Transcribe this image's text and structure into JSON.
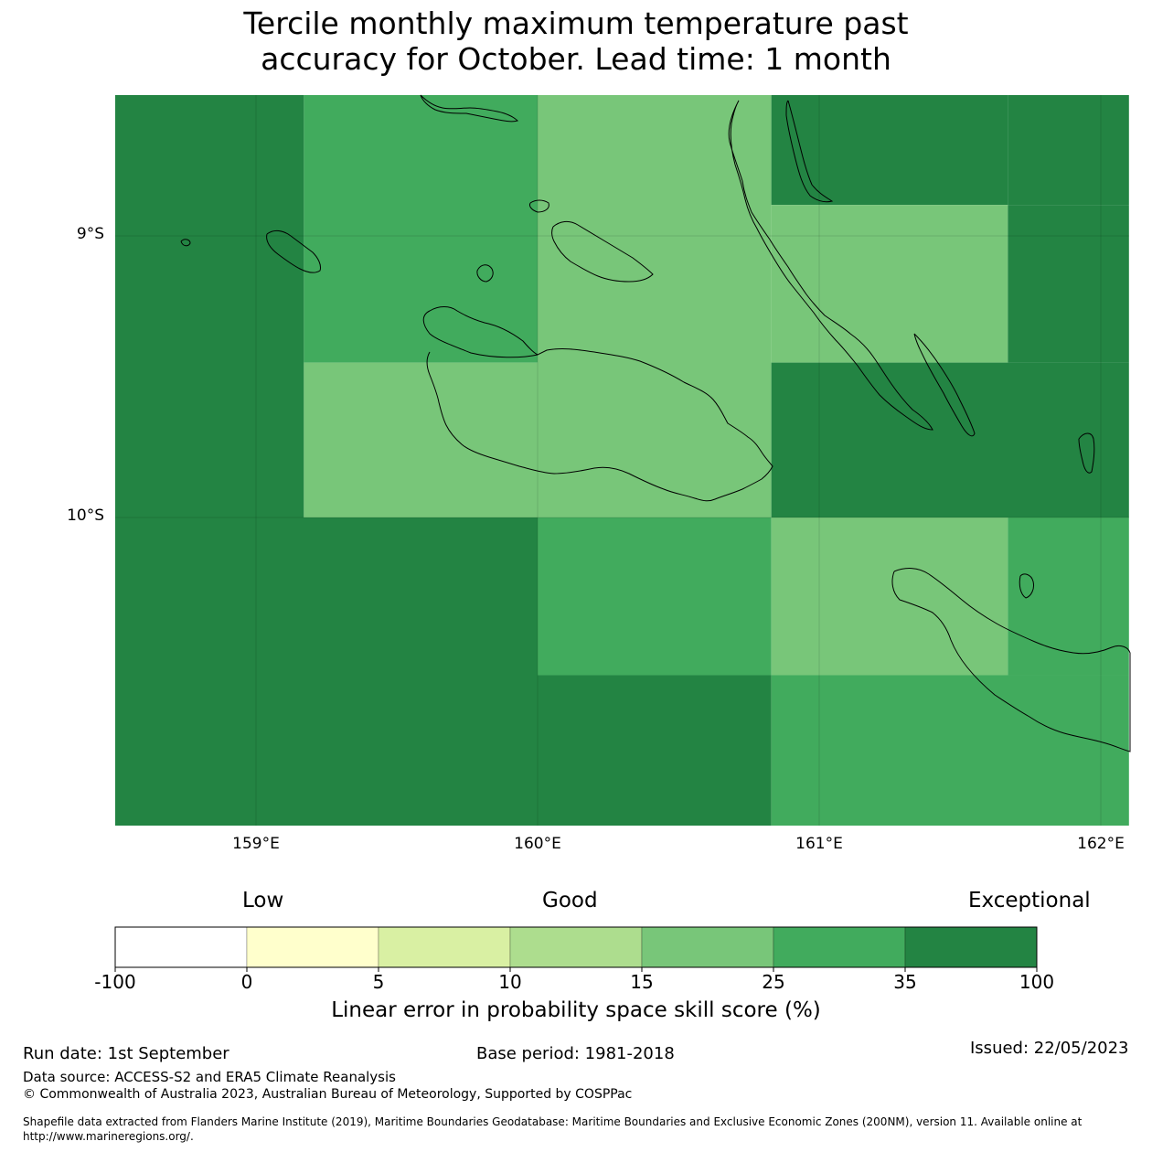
{
  "title": {
    "line1": "Tercile monthly maximum temperature past",
    "line2": "accuracy for October. Lead time: 1 month"
  },
  "map": {
    "lat_labels": [
      "9°S",
      "10°S"
    ],
    "lon_labels": [
      "159°E",
      "160°E",
      "161°E",
      "162°E"
    ],
    "grid_cells": [
      {
        "lon": [
          158.5,
          159.17
        ],
        "lat": [
          -8.5,
          -10.0
        ],
        "skill_band": "35-100"
      },
      {
        "lon": [
          159.17,
          160.0
        ],
        "lat": [
          -8.5,
          -9.45
        ],
        "skill_band": "25-35"
      },
      {
        "lon": [
          159.17,
          160.0
        ],
        "lat": [
          -9.45,
          -10.0
        ],
        "skill_band": "15-25"
      },
      {
        "lon": [
          160.0,
          160.83
        ],
        "lat": [
          -8.5,
          -10.0
        ],
        "skill_band": "15-25"
      },
      {
        "lon": [
          160.83,
          161.67
        ],
        "lat": [
          -8.5,
          -8.89
        ],
        "skill_band": "35-100"
      },
      {
        "lon": [
          161.67,
          162.1
        ],
        "lat": [
          -8.5,
          -8.89
        ],
        "skill_band": "35-100"
      },
      {
        "lon": [
          160.83,
          161.67
        ],
        "lat": [
          -8.89,
          -9.45
        ],
        "skill_band": "15-25"
      },
      {
        "lon": [
          161.67,
          162.1
        ],
        "lat": [
          -8.89,
          -9.45
        ],
        "skill_band": "35-100"
      },
      {
        "lon": [
          160.83,
          162.1
        ],
        "lat": [
          -9.45,
          -10.0
        ],
        "skill_band": "35-100"
      },
      {
        "lon": [
          158.5,
          160.0
        ],
        "lat": [
          -10.0,
          -11.1
        ],
        "skill_band": "35-100"
      },
      {
        "lon": [
          160.0,
          160.83
        ],
        "lat": [
          -10.0,
          -10.56
        ],
        "skill_band": "25-35"
      },
      {
        "lon": [
          160.0,
          160.83
        ],
        "lat": [
          -10.56,
          -11.1
        ],
        "skill_band": "35-100"
      },
      {
        "lon": [
          160.83,
          161.67
        ],
        "lat": [
          -10.0,
          -10.56
        ],
        "skill_band": "15-25"
      },
      {
        "lon": [
          161.67,
          162.1
        ],
        "lat": [
          -10.0,
          -10.56
        ],
        "skill_band": "25-35"
      },
      {
        "lon": [
          160.83,
          162.1
        ],
        "lat": [
          -10.56,
          -11.1
        ],
        "skill_band": "25-35"
      }
    ],
    "colors": {
      "35-100": "#238443",
      "25-35": "#41ab5d",
      "15-25": "#78c679",
      "coastline": "#000000"
    }
  },
  "colorbar": {
    "categories": [
      "Low",
      "Good",
      "Exceptional"
    ],
    "ticks": [
      "-100",
      "0",
      "5",
      "10",
      "15",
      "25",
      "35",
      "100"
    ],
    "colors": [
      "#ffffff",
      "#ffffcc",
      "#d9f0a3",
      "#addd8e",
      "#78c679",
      "#41ab5d",
      "#238443"
    ],
    "label": "Linear error in probability space skill score (%)"
  },
  "footer": {
    "run_date": "Run date: 1st September",
    "base_period": "Base period: 1981-2018",
    "issued": "Issued: 22/05/2023",
    "data_source": "Data source: ACCESS-S2 and ERA5 Climate Reanalysis",
    "copyright": "© Commonwealth of Australia 2023, Australian Bureau of Meteorology, Supported by COSPPac",
    "shapefile_line1": "Shapefile data extracted from Flanders Marine Institute (2019), Maritime Boundaries Geodatabase: Maritime Boundaries and Exclusive Economic Zones (200NM), version 11. Available online at",
    "shapefile_line2": "http://www.marineregions.org/."
  }
}
